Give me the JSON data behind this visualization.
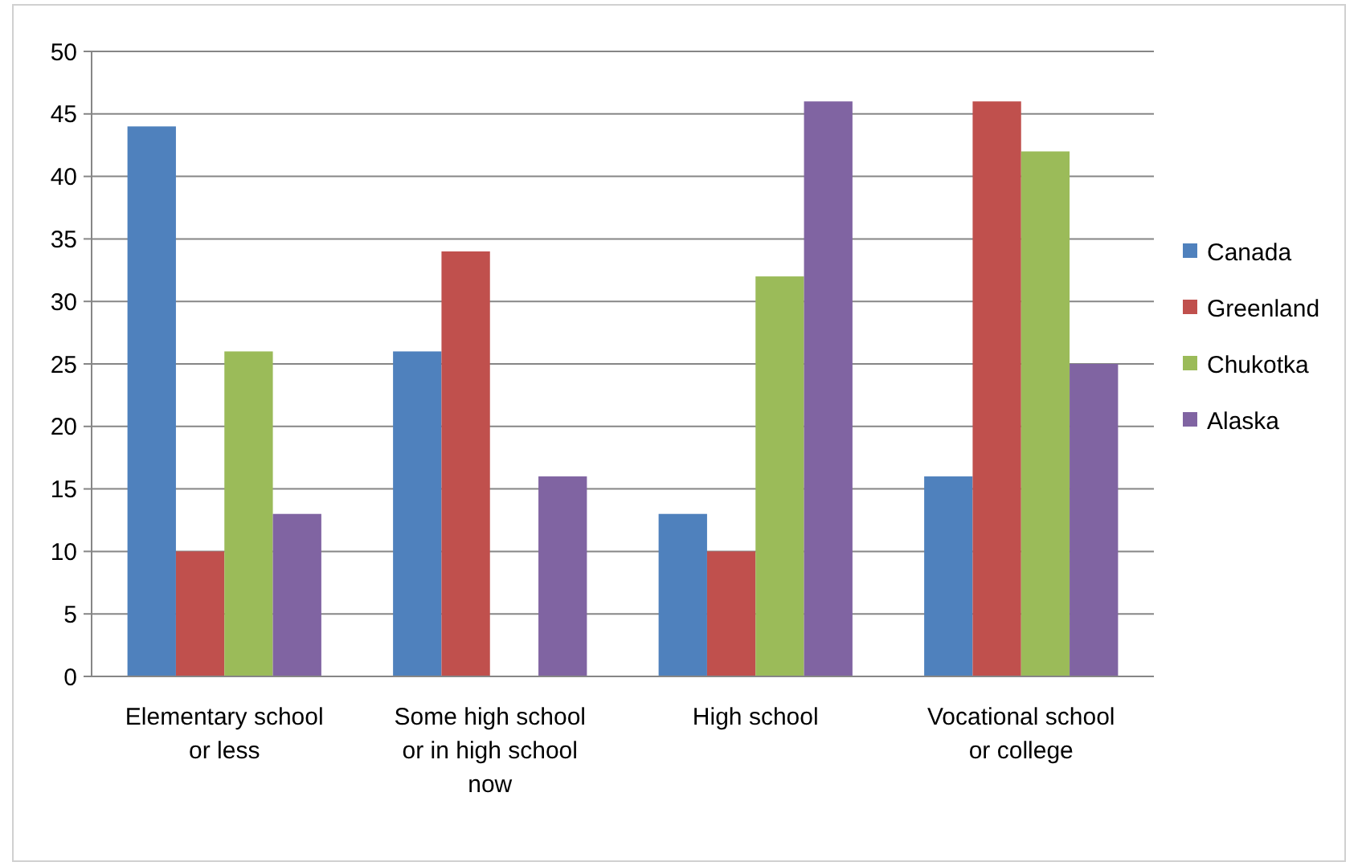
{
  "chart_data": {
    "type": "bar",
    "categories": [
      "Elementary school or less",
      "Some high school or in high school now",
      "High school",
      "Vocational school or college"
    ],
    "series": [
      {
        "name": "Canada",
        "color": "#4f81bd",
        "values": [
          44,
          26,
          13,
          16
        ]
      },
      {
        "name": "Greenland",
        "color": "#c0504d",
        "values": [
          10,
          34,
          10,
          46
        ]
      },
      {
        "name": "Chukotka",
        "color": "#9bbb59",
        "values": [
          26,
          null,
          32,
          42
        ]
      },
      {
        "name": "Alaska",
        "color": "#8064a2",
        "values": [
          13,
          16,
          46,
          25
        ]
      }
    ],
    "ylim": [
      0,
      50
    ],
    "yticks": [
      0,
      5,
      10,
      15,
      20,
      25,
      30,
      35,
      40,
      45,
      50
    ],
    "grid": "y",
    "legend": "right"
  }
}
